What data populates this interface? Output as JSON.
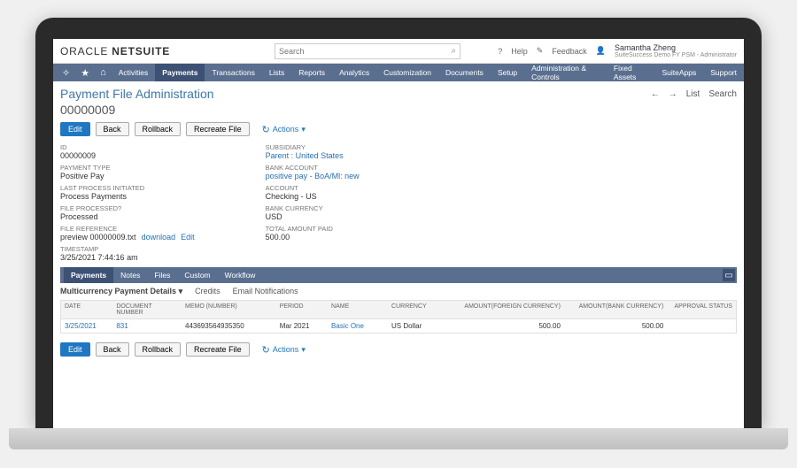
{
  "brand": {
    "text1": "ORACLE ",
    "text2": "NETSUITE"
  },
  "search": {
    "placeholder": "Search"
  },
  "top_right": {
    "help": "Help",
    "feedback": "Feedback",
    "user_name": "Samantha Zheng",
    "user_role": "SuiteSuccess Demo FY PSM - Administrator"
  },
  "nav": {
    "items": [
      "Activities",
      "Payments",
      "Transactions",
      "Lists",
      "Reports",
      "Analytics",
      "Customization",
      "Documents",
      "Setup",
      "Administration & Controls",
      "Fixed Assets",
      "SuiteApps",
      "Support"
    ],
    "active": "Payments"
  },
  "title_bar": {
    "title": "Payment File Administration",
    "list": "List",
    "search": "Search"
  },
  "record_id": "00000009",
  "action_bar": {
    "edit": "Edit",
    "back": "Back",
    "rollback": "Rollback",
    "recreate": "Recreate File",
    "actions": "Actions"
  },
  "left_fields": {
    "id_label": "ID",
    "id_value": "00000009",
    "payment_type_label": "PAYMENT TYPE",
    "payment_type_value": "Positive Pay",
    "last_process_label": "LAST PROCESS INITIATED",
    "last_process_value": "Process Payments",
    "file_processed_label": "FILE PROCESSED?",
    "file_processed_value": "Processed",
    "file_reference_label": "FILE REFERENCE",
    "file_reference_value": "preview 00000009.txt",
    "download": "download",
    "editlink": "Edit",
    "timestamp_label": "TIMESTAMP",
    "timestamp_value": "3/25/2021 7:44:16 am"
  },
  "right_fields": {
    "subsidiary_label": "SUBSIDIARY",
    "subsidiary_value": "Parent : United States",
    "bank_account_label": "BANK ACCOUNT",
    "bank_account_value": "positive pay - BoA/Ml: new",
    "account_label": "ACCOUNT",
    "account_value": "Checking - US",
    "bank_currency_label": "BANK CURRENCY",
    "bank_currency_value": "USD",
    "total_amount_label": "TOTAL AMOUNT PAID",
    "total_amount_value": "500.00"
  },
  "subtabs": {
    "items": [
      "Payments",
      "Notes",
      "Files",
      "Custom",
      "Workflow"
    ],
    "active": "Payments"
  },
  "sublist_head": {
    "current": "Multicurrency Payment Details",
    "other1": "Credits",
    "other2": "Email Notifications"
  },
  "table": {
    "columns": [
      "DATE",
      "DOCUMENT NUMBER",
      "MEMO (NUMBER)",
      "PERIOD",
      "NAME",
      "CURRENCY",
      "AMOUNT(FOREIGN CURRENCY)",
      "AMOUNT(BANK CURRENCY)",
      "APPROVAL STATUS"
    ],
    "row": {
      "date": "3/25/2021",
      "doc": "831",
      "memo": "443693564935350",
      "period": "Mar 2021",
      "name": "Basic One",
      "currency": "US Dollar",
      "amt_foreign": "500.00",
      "amt_bank": "500.00",
      "approval": ""
    }
  }
}
